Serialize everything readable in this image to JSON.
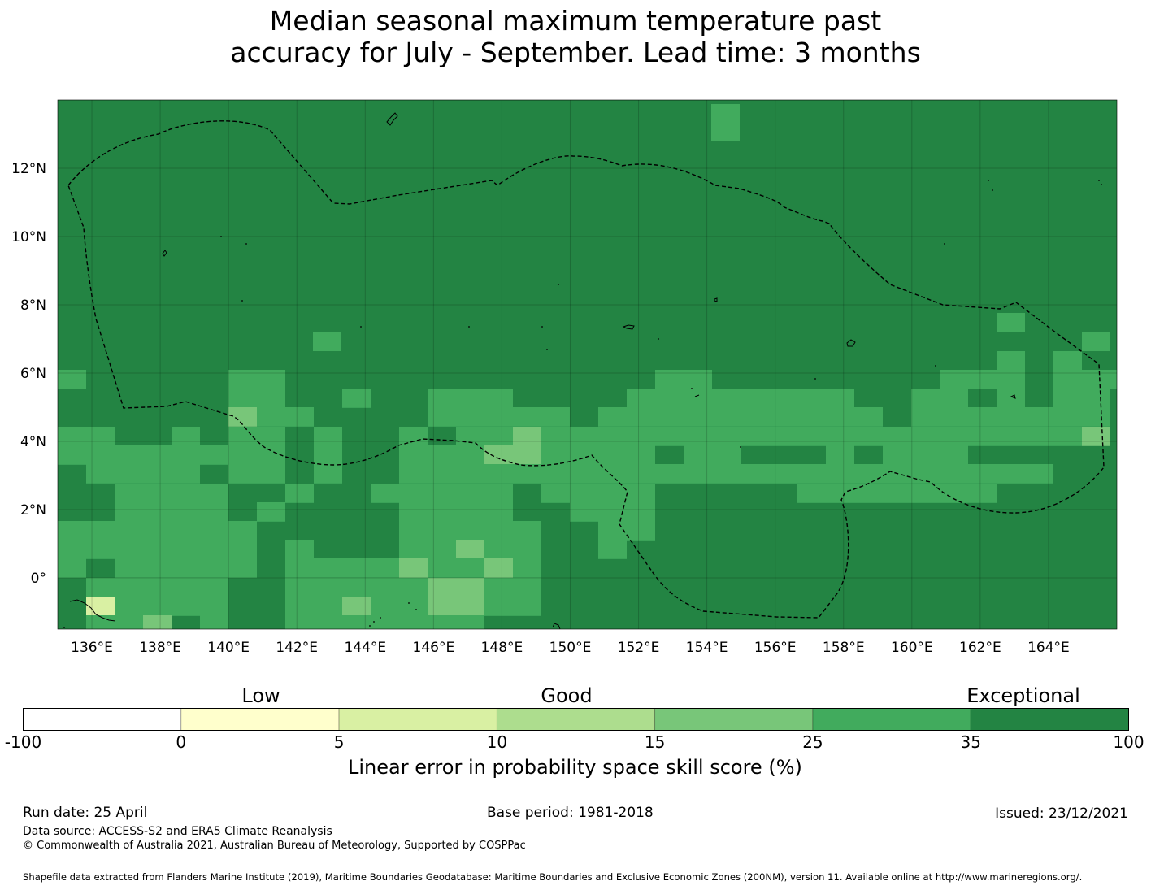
{
  "title_line1": "Median seasonal maximum temperature past",
  "title_line2": "accuracy for July - September. Lead time: 3 months",
  "map": {
    "lon_range": [
      135,
      166
    ],
    "lat_range": [
      -1.5,
      14
    ],
    "lon_ticks": [
      "136°E",
      "138°E",
      "140°E",
      "142°E",
      "144°E",
      "146°E",
      "148°E",
      "150°E",
      "152°E",
      "154°E",
      "156°E",
      "158°E",
      "160°E",
      "162°E",
      "164°E"
    ],
    "lat_ticks": [
      "12°N",
      "10°N",
      "8°N",
      "6°N",
      "4°N",
      "2°N",
      "0°"
    ],
    "grid": true,
    "colors": {
      "exceptional": "#238443",
      "very_good": "#41ab5d",
      "good": "#78c679",
      "fair": "#addd8e",
      "low": "#d9f0a3"
    }
  },
  "colorbar": {
    "group_labels": [
      "Low",
      "Good",
      "Exceptional"
    ],
    "bounds": [
      "-100",
      "0",
      "5",
      "10",
      "15",
      "25",
      "35",
      "100"
    ],
    "colors": [
      "#ffffff",
      "#ffffcc",
      "#d9f0a3",
      "#addd8e",
      "#78c679",
      "#41ab5d",
      "#238443"
    ],
    "label": "Linear error in probability space skill score (%)"
  },
  "footer": {
    "run_date": "Run date: 25 April",
    "base_period": "Base period: 1981-2018",
    "issued": "Issued: 23/12/2021",
    "data_source": "Data source: ACCESS-S2 and ERA5 Climate Reanalysis",
    "copyright": "© Commonwealth of Australia 2021, Australian Bureau of Meteorology, Supported by COSPPac",
    "shapefile": "Shapefile data extracted from Flanders Marine Institute (2019), Maritime Boundaries Geodatabase: Maritime Boundaries and Exclusive Economic Zones (200NM), version 11. Available online at http://www.marineregions.org/."
  }
}
